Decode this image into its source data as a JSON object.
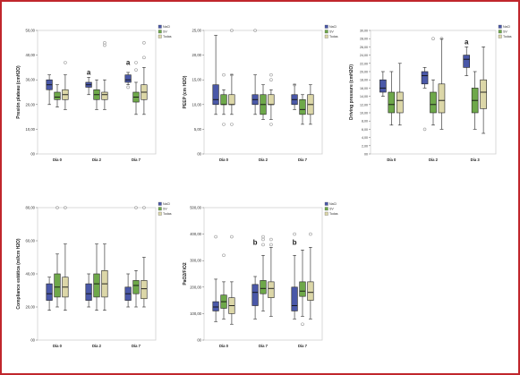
{
  "colors": {
    "frame": "#c0262c",
    "series": [
      "#4a58a8",
      "#6ea84a",
      "#dcd7a8"
    ],
    "outlier": "#9a9a9a"
  },
  "chart_data": [
    {
      "type": "box",
      "ylabel": "Presión plateau (cmH2O)",
      "ylim": [
        0,
        50
      ],
      "yticks": [
        "00",
        "10,00",
        "20,00",
        "30,00",
        "40,00",
        "50,00"
      ],
      "ytick_values": [
        0,
        10,
        20,
        30,
        40,
        50
      ],
      "categories": [
        "Día 0",
        "Día 2",
        "Día 7"
      ],
      "legend": [
        "NaCl",
        "SV",
        "Todas"
      ],
      "annotations": [
        {
          "category": 1,
          "text": "a"
        },
        {
          "category": 2,
          "text": "a"
        }
      ],
      "series": [
        {
          "name": "NaCl",
          "boxes": [
            [
              20,
              26,
              28,
              30,
              32
            ],
            [
              24,
              27,
              28,
              29,
              31
            ],
            [
              28,
              29,
              30,
              32,
              33
            ]
          ],
          "outliers": [
            [],
            [],
            [
              27
            ]
          ]
        },
        {
          "name": "SV",
          "boxes": [
            [
              19,
              22,
              23,
              25,
              28
            ],
            [
              18,
              22,
              24,
              26,
              30
            ],
            [
              16,
              21,
              23,
              25,
              29
            ]
          ],
          "outliers": [
            [],
            [],
            [
              34,
              37
            ]
          ]
        },
        {
          "name": "Todas",
          "boxes": [
            [
              18,
              22,
              24,
              26,
              32
            ],
            [
              18,
              22,
              24,
              25,
              30
            ],
            [
              16,
              22,
              25,
              28,
              35
            ]
          ],
          "outliers": [
            [
              37
            ],
            [
              45,
              44
            ],
            [
              45,
              39
            ]
          ]
        }
      ]
    },
    {
      "type": "box",
      "ylabel": "PEEP (cm H2O)",
      "ylim": [
        0,
        25
      ],
      "yticks": [
        "00",
        "5,00",
        "10,00",
        "15,00",
        "20,00",
        "25,00"
      ],
      "ytick_values": [
        0,
        5,
        10,
        15,
        20,
        25
      ],
      "categories": [
        "Día 0",
        "Día 2",
        "Día 7"
      ],
      "legend": [
        "NaCl",
        "SV",
        "Todas"
      ],
      "annotations": [],
      "series": [
        {
          "name": "NaCl",
          "boxes": [
            [
              8,
              10,
              11,
              14,
              24
            ],
            [
              8,
              10,
              11,
              12,
              16
            ],
            [
              9,
              10,
              11,
              12,
              14
            ]
          ],
          "outliers": [
            [],
            [
              25
            ],
            [
              14
            ]
          ]
        },
        {
          "name": "SV",
          "boxes": [
            [
              8,
              10,
              10,
              12,
              13
            ],
            [
              7,
              8,
              10,
              12,
              14
            ],
            [
              6,
              8,
              9,
              11,
              12
            ]
          ],
          "outliers": [
            [
              6,
              16
            ],
            [],
            []
          ]
        },
        {
          "name": "Todas",
          "boxes": [
            [
              8,
              10,
              10,
              12,
              16
            ],
            [
              7,
              10,
              10,
              12,
              13
            ],
            [
              6,
              8,
              10,
              12,
              14
            ]
          ],
          "outliers": [
            [
              6,
              16,
              25
            ],
            [
              6,
              15,
              16
            ],
            []
          ]
        }
      ]
    },
    {
      "type": "box",
      "ylabel": "Driving pressure (cmH2O)",
      "ylim": [
        0,
        30
      ],
      "yticks": [
        "00",
        "2,00",
        "4,00",
        "6,00",
        "8,00",
        "10,00",
        "12,00",
        "14,00",
        "16,00",
        "18,00",
        "20,00",
        "22,00",
        "24,00",
        "26,00",
        "28,00",
        "30,00"
      ],
      "ytick_values": [
        0,
        2,
        4,
        6,
        8,
        10,
        12,
        14,
        16,
        18,
        20,
        22,
        24,
        26,
        28,
        30
      ],
      "categories": [
        "Día 0",
        "Día 2",
        "Día 3"
      ],
      "legend": [
        "NaCl",
        "SV",
        "Todas"
      ],
      "annotations": [
        {
          "category": 2,
          "text": "a"
        }
      ],
      "series": [
        {
          "name": "NaCl",
          "boxes": [
            [
              14,
              15,
              16,
              18,
              20
            ],
            [
              16,
              17,
              19,
              20,
              21
            ],
            [
              19,
              21,
              23,
              24,
              26
            ]
          ],
          "outliers": [
            [],
            [
              6
            ],
            []
          ]
        },
        {
          "name": "SV",
          "boxes": [
            [
              7,
              10,
              12,
              15,
              20
            ],
            [
              7,
              10,
              12,
              15,
              18
            ],
            [
              6,
              10,
              13,
              16,
              20
            ]
          ],
          "outliers": [
            [],
            [
              28
            ],
            []
          ]
        },
        {
          "name": "Todas",
          "boxes": [
            [
              7,
              10,
              13,
              15,
              22
            ],
            [
              6,
              10,
              13,
              17,
              28
            ],
            [
              5,
              11,
              15,
              18,
              26
            ]
          ],
          "outliers": [
            [],
            [
              28
            ],
            []
          ]
        }
      ]
    },
    {
      "type": "box",
      "ylabel": "Compliance estática (ml/cm H2O)",
      "ylim": [
        0,
        80
      ],
      "yticks": [
        "00",
        "20,00",
        "40,00",
        "60,00",
        "80,00"
      ],
      "ytick_values": [
        0,
        20,
        40,
        60,
        80
      ],
      "categories": [
        "Día 0",
        "Día 2",
        "Día 7"
      ],
      "legend": [
        "NaCl",
        "SV",
        "Todas"
      ],
      "annotations": [],
      "series": [
        {
          "name": "NaCl",
          "boxes": [
            [
              18,
              24,
              28,
              34,
              38
            ],
            [
              20,
              24,
              28,
              34,
              40
            ],
            [
              20,
              24,
              28,
              32,
              40
            ]
          ],
          "outliers": [
            [],
            [],
            []
          ]
        },
        {
          "name": "SV",
          "boxes": [
            [
              20,
              26,
              32,
              40,
              52
            ],
            [
              18,
              26,
              34,
              40,
              58
            ],
            [
              20,
              28,
              33,
              36,
              42
            ]
          ],
          "outliers": [
            [
              80
            ],
            [],
            [
              80
            ]
          ]
        },
        {
          "name": "Todas",
          "boxes": [
            [
              18,
              26,
              32,
              38,
              58
            ],
            [
              18,
              26,
              34,
              42,
              58
            ],
            [
              20,
              25,
              31,
              36,
              50
            ]
          ],
          "outliers": [
            [
              80
            ],
            [],
            [
              80
            ]
          ]
        }
      ]
    },
    {
      "type": "box",
      "ylabel": "PaO2/FiO2",
      "ylim": [
        0,
        500
      ],
      "yticks": [
        "00",
        "100,00",
        "200,00",
        "300,00",
        "400,00",
        "500,00"
      ],
      "ytick_values": [
        0,
        100,
        200,
        300,
        400,
        500
      ],
      "categories": [
        "Día 0",
        "Día 7",
        "Día 7"
      ],
      "legend": [
        "NaCl",
        "SV",
        "Todas"
      ],
      "annotations": [
        {
          "category": 1,
          "text": "b"
        },
        {
          "category": 2,
          "text": "b"
        }
      ],
      "series": [
        {
          "name": "NaCl",
          "boxes": [
            [
              70,
              110,
              125,
              145,
              230
            ],
            [
              80,
              130,
              180,
              210,
              240
            ],
            [
              80,
              110,
              130,
              200,
              320
            ]
          ],
          "outliers": [
            [
              390
            ],
            [],
            [
              400
            ]
          ]
        },
        {
          "name": "SV",
          "boxes": [
            [
              80,
              120,
              145,
              170,
              220
            ],
            [
              110,
              175,
              195,
              225,
              320
            ],
            [
              90,
              165,
              185,
              220,
              340
            ]
          ],
          "outliers": [
            [
              320
            ],
            [
              360,
              380,
              390
            ],
            [
              60
            ]
          ]
        },
        {
          "name": "Todas",
          "boxes": [
            [
              60,
              100,
              130,
              160,
              220
            ],
            [
              90,
              160,
              195,
              220,
              350
            ],
            [
              80,
              150,
              180,
              220,
              350
            ]
          ],
          "outliers": [
            [
              390
            ],
            [
              360,
              380
            ],
            [
              400
            ]
          ]
        }
      ]
    }
  ]
}
